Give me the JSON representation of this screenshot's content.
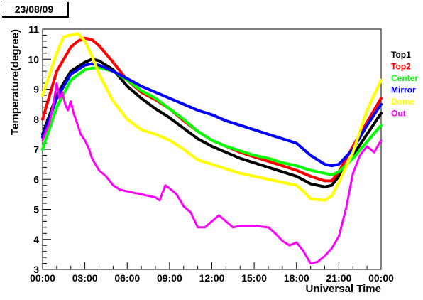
{
  "header": {
    "date": "23/08/09"
  },
  "chart_data": {
    "type": "line",
    "title": "",
    "xlabel": "Universal Time",
    "ylabel": "Temperature(degree)",
    "xlim": [
      0,
      24
    ],
    "ylim": [
      3,
      11
    ],
    "x_ticks": [
      {
        "v": 0,
        "label": "00:00"
      },
      {
        "v": 3,
        "label": "03:00"
      },
      {
        "v": 6,
        "label": "06:00"
      },
      {
        "v": 9,
        "label": "09:00"
      },
      {
        "v": 12,
        "label": "12:00"
      },
      {
        "v": 15,
        "label": "15:00"
      },
      {
        "v": 18,
        "label": "18:00"
      },
      {
        "v": 21,
        "label": "21:00"
      },
      {
        "v": 24,
        "label": "00:00"
      }
    ],
    "y_ticks": [
      {
        "v": 3,
        "label": "3"
      },
      {
        "v": 4,
        "label": "4"
      },
      {
        "v": 5,
        "label": "5"
      },
      {
        "v": 6,
        "label": "6"
      },
      {
        "v": 7,
        "label": "7"
      },
      {
        "v": 8,
        "label": "8"
      },
      {
        "v": 9,
        "label": "9"
      },
      {
        "v": 10,
        "label": "10"
      },
      {
        "v": 11,
        "label": "11"
      }
    ],
    "grid": false,
    "legend_position": "right",
    "series": [
      {
        "name": "Top1",
        "color": "#000000",
        "points": [
          [
            0,
            7.5
          ],
          [
            1,
            8.8
          ],
          [
            2,
            9.6
          ],
          [
            3,
            9.9
          ],
          [
            3.5,
            10.0
          ],
          [
            4,
            9.95
          ],
          [
            5,
            9.65
          ],
          [
            6,
            9.1
          ],
          [
            7,
            8.7
          ],
          [
            8,
            8.35
          ],
          [
            9,
            8.05
          ],
          [
            10,
            7.7
          ],
          [
            11,
            7.35
          ],
          [
            12,
            7.1
          ],
          [
            13,
            6.9
          ],
          [
            14,
            6.7
          ],
          [
            15,
            6.55
          ],
          [
            16,
            6.4
          ],
          [
            17,
            6.25
          ],
          [
            18,
            6.1
          ],
          [
            19,
            5.85
          ],
          [
            20,
            5.75
          ],
          [
            20.5,
            5.8
          ],
          [
            21,
            6.1
          ],
          [
            22,
            6.8
          ],
          [
            23,
            7.5
          ],
          [
            24,
            8.2
          ]
        ]
      },
      {
        "name": "Top2",
        "color": "#ff0000",
        "points": [
          [
            0,
            8.0
          ],
          [
            1,
            9.6
          ],
          [
            2,
            10.4
          ],
          [
            2.5,
            10.6
          ],
          [
            3,
            10.7
          ],
          [
            3.5,
            10.65
          ],
          [
            4,
            10.45
          ],
          [
            5,
            9.9
          ],
          [
            6,
            9.3
          ],
          [
            7,
            8.9
          ],
          [
            8,
            8.65
          ],
          [
            9,
            8.35
          ],
          [
            10,
            7.95
          ],
          [
            11,
            7.6
          ],
          [
            12,
            7.3
          ],
          [
            13,
            7.1
          ],
          [
            14,
            6.9
          ],
          [
            15,
            6.75
          ],
          [
            16,
            6.6
          ],
          [
            17,
            6.45
          ],
          [
            18,
            6.3
          ],
          [
            19,
            6.1
          ],
          [
            20,
            5.95
          ],
          [
            20.5,
            5.95
          ],
          [
            21,
            6.25
          ],
          [
            22,
            7.1
          ],
          [
            23,
            7.9
          ],
          [
            24,
            8.7
          ]
        ]
      },
      {
        "name": "Center",
        "color": "#00ff00",
        "points": [
          [
            0,
            7.0
          ],
          [
            1,
            8.4
          ],
          [
            2,
            9.3
          ],
          [
            3,
            9.65
          ],
          [
            3.5,
            9.7
          ],
          [
            4,
            9.72
          ],
          [
            5,
            9.6
          ],
          [
            6,
            9.3
          ],
          [
            7,
            8.95
          ],
          [
            8,
            8.7
          ],
          [
            9,
            8.35
          ],
          [
            10,
            8.0
          ],
          [
            11,
            7.6
          ],
          [
            12,
            7.3
          ],
          [
            13,
            7.1
          ],
          [
            14,
            6.95
          ],
          [
            15,
            6.8
          ],
          [
            16,
            6.7
          ],
          [
            17,
            6.55
          ],
          [
            18,
            6.45
          ],
          [
            19,
            6.3
          ],
          [
            20,
            6.2
          ],
          [
            20.5,
            6.15
          ],
          [
            21,
            6.25
          ],
          [
            22,
            6.7
          ],
          [
            23,
            7.25
          ],
          [
            24,
            7.8
          ]
        ]
      },
      {
        "name": "Mirror",
        "color": "#0000ff",
        "points": [
          [
            0,
            7.4
          ],
          [
            1,
            8.7
          ],
          [
            2,
            9.5
          ],
          [
            3,
            9.8
          ],
          [
            3.5,
            9.85
          ],
          [
            4,
            9.8
          ],
          [
            5,
            9.6
          ],
          [
            6,
            9.35
          ],
          [
            7,
            9.1
          ],
          [
            8,
            8.9
          ],
          [
            9,
            8.7
          ],
          [
            10,
            8.5
          ],
          [
            11,
            8.3
          ],
          [
            12,
            8.15
          ],
          [
            13,
            7.95
          ],
          [
            14,
            7.8
          ],
          [
            15,
            7.65
          ],
          [
            16,
            7.5
          ],
          [
            17,
            7.35
          ],
          [
            18,
            7.2
          ],
          [
            18.5,
            7.0
          ],
          [
            19,
            6.8
          ],
          [
            20,
            6.5
          ],
          [
            20.5,
            6.45
          ],
          [
            21,
            6.5
          ],
          [
            22,
            7.0
          ],
          [
            23,
            7.8
          ],
          [
            24,
            8.5
          ]
        ]
      },
      {
        "name": "Dome",
        "color": "#ffff00",
        "points": [
          [
            0,
            8.8
          ],
          [
            0.5,
            9.5
          ],
          [
            1,
            10.2
          ],
          [
            1.5,
            10.75
          ],
          [
            2,
            10.8
          ],
          [
            2.5,
            10.85
          ],
          [
            3,
            10.6
          ],
          [
            3.5,
            10.1
          ],
          [
            4,
            9.5
          ],
          [
            5,
            8.6
          ],
          [
            6,
            8.0
          ],
          [
            7,
            7.65
          ],
          [
            8,
            7.5
          ],
          [
            9,
            7.3
          ],
          [
            10,
            7.0
          ],
          [
            11,
            6.65
          ],
          [
            12,
            6.5
          ],
          [
            13,
            6.35
          ],
          [
            14,
            6.2
          ],
          [
            15,
            6.1
          ],
          [
            16,
            6.0
          ],
          [
            17,
            5.9
          ],
          [
            18,
            5.8
          ],
          [
            18.5,
            5.6
          ],
          [
            19,
            5.35
          ],
          [
            20,
            5.3
          ],
          [
            20.5,
            5.45
          ],
          [
            21,
            5.9
          ],
          [
            22,
            6.9
          ],
          [
            23,
            8.3
          ],
          [
            24,
            9.3
          ]
        ]
      },
      {
        "name": "Out",
        "color": "#ff00ff",
        "points": [
          [
            0,
            7.3
          ],
          [
            0.5,
            7.9
          ],
          [
            0.8,
            8.6
          ],
          [
            1,
            9.2
          ],
          [
            1.2,
            8.7
          ],
          [
            1.4,
            8.9
          ],
          [
            1.6,
            8.5
          ],
          [
            1.8,
            8.3
          ],
          [
            2,
            8.6
          ],
          [
            2.2,
            8.2
          ],
          [
            2.5,
            7.8
          ],
          [
            2.7,
            7.5
          ],
          [
            3,
            7.3
          ],
          [
            3.3,
            7.0
          ],
          [
            3.5,
            6.7
          ],
          [
            4,
            6.3
          ],
          [
            4.5,
            6.1
          ],
          [
            5,
            5.8
          ],
          [
            5.5,
            5.65
          ],
          [
            6,
            5.6
          ],
          [
            6.5,
            5.55
          ],
          [
            7,
            5.5
          ],
          [
            7.5,
            5.45
          ],
          [
            8,
            5.4
          ],
          [
            8.3,
            5.3
          ],
          [
            8.7,
            5.8
          ],
          [
            9,
            5.7
          ],
          [
            9.5,
            5.5
          ],
          [
            10,
            5.1
          ],
          [
            10.5,
            4.9
          ],
          [
            11,
            4.4
          ],
          [
            11.5,
            4.4
          ],
          [
            12,
            4.6
          ],
          [
            12.5,
            4.8
          ],
          [
            13,
            4.6
          ],
          [
            13.5,
            4.4
          ],
          [
            14,
            4.45
          ],
          [
            15,
            4.45
          ],
          [
            16,
            4.4
          ],
          [
            16.5,
            4.2
          ],
          [
            17,
            3.95
          ],
          [
            17.5,
            3.8
          ],
          [
            18,
            3.9
          ],
          [
            18.5,
            3.6
          ],
          [
            19,
            3.2
          ],
          [
            19.5,
            3.25
          ],
          [
            20,
            3.45
          ],
          [
            20.5,
            3.7
          ],
          [
            21,
            4.1
          ],
          [
            21.5,
            5.0
          ],
          [
            22,
            6.2
          ],
          [
            22.5,
            6.8
          ],
          [
            23,
            7.1
          ],
          [
            23.5,
            6.9
          ],
          [
            24,
            7.3
          ]
        ]
      }
    ]
  }
}
